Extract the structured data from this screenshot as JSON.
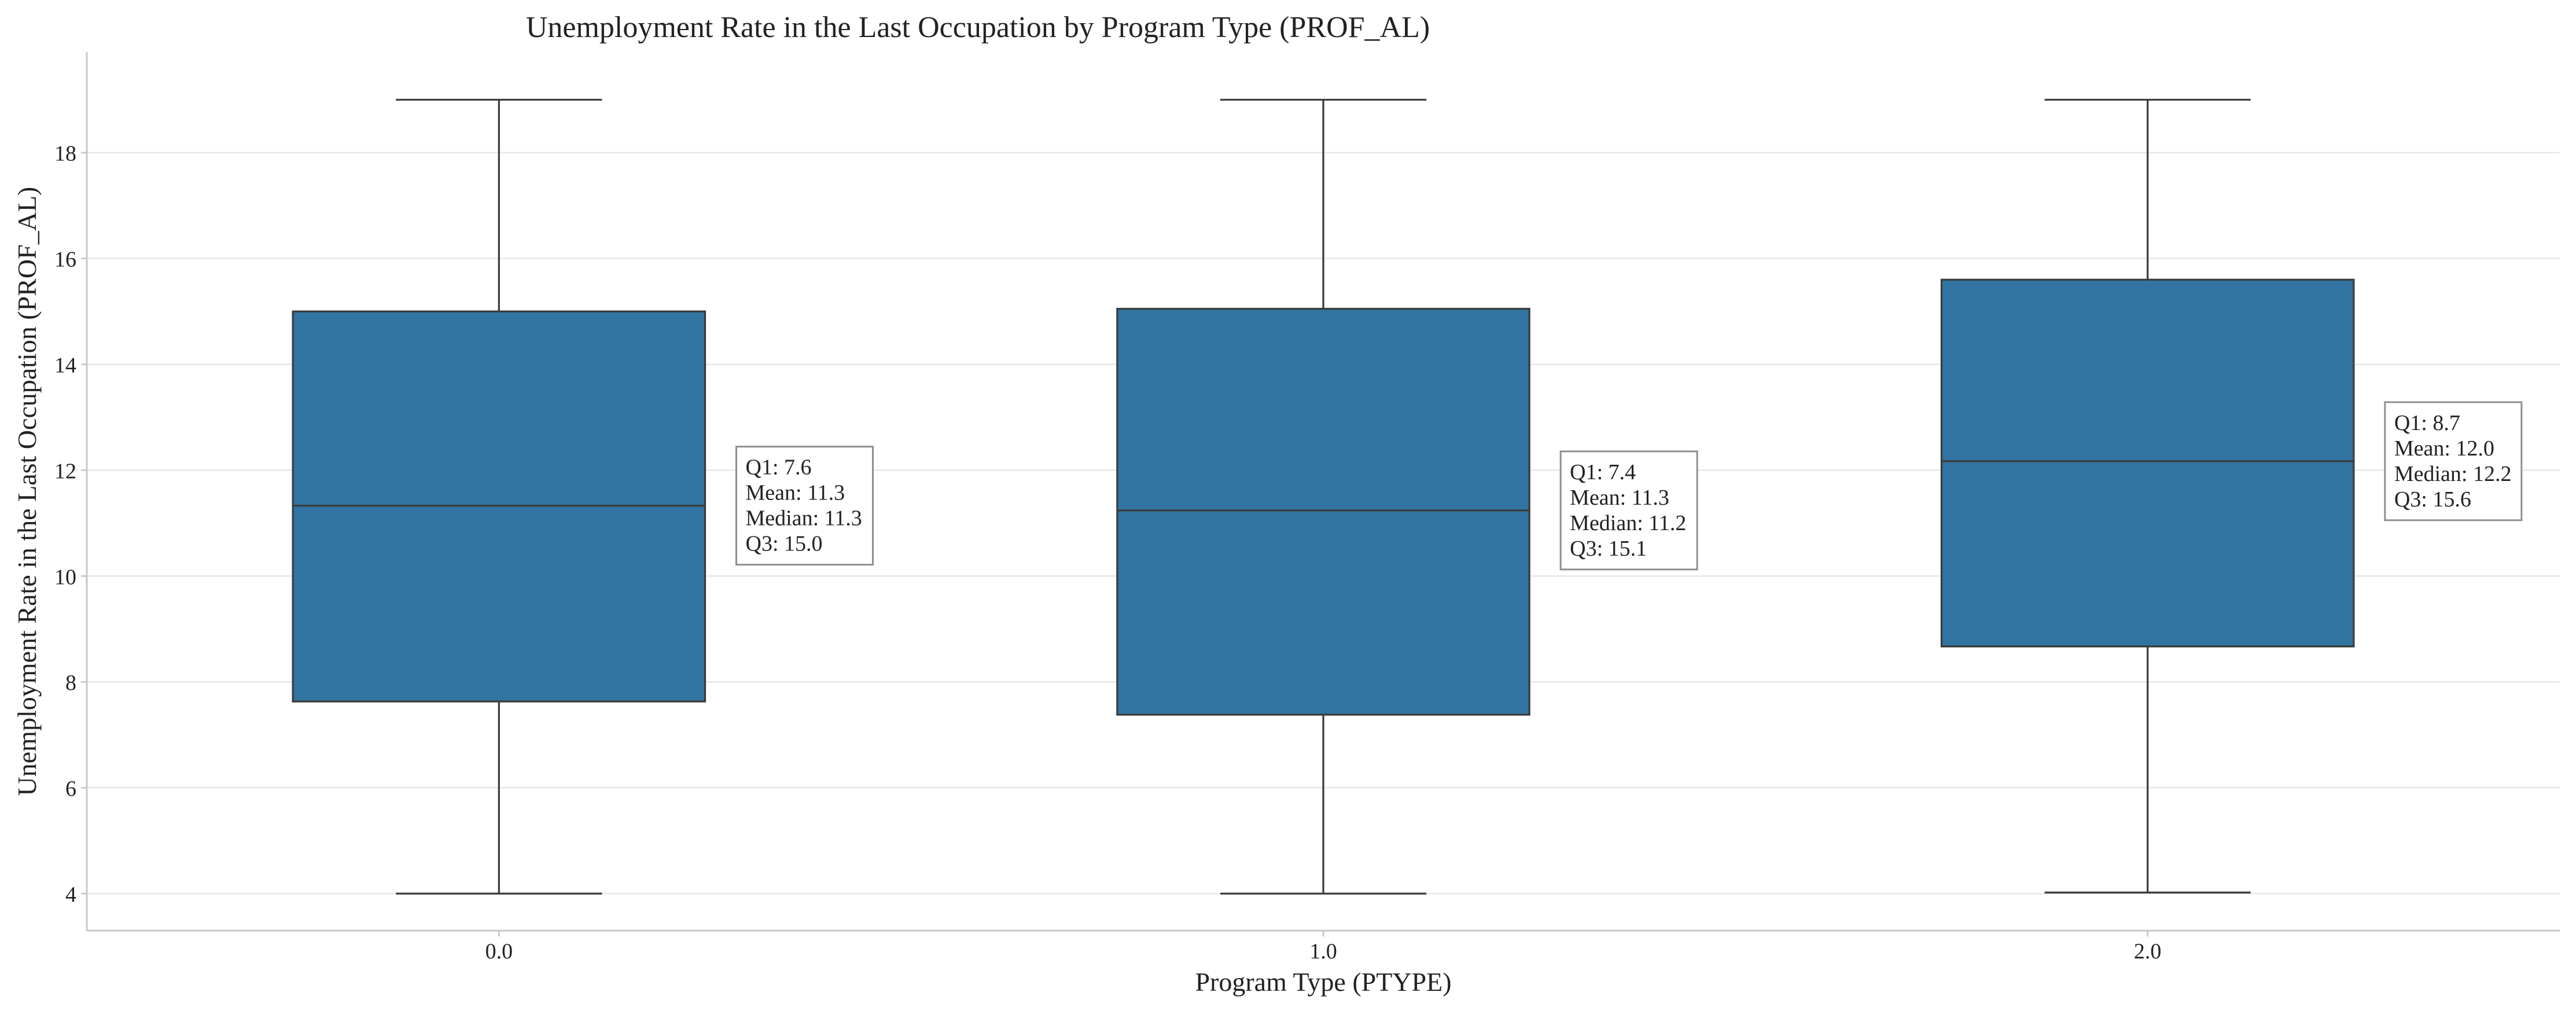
{
  "chart_data": {
    "type": "box",
    "title": "Unemployment Rate in the Last Occupation by Program Type (PROF_AL)",
    "xlabel": "Program Type (PTYPE)",
    "ylabel": "Unemployment Rate in the Last Occupation (PROF_AL)",
    "ylim": [
      3.3,
      19.9
    ],
    "yticks": [
      4,
      6,
      8,
      10,
      12,
      14,
      16,
      18
    ],
    "grid": "horizontal",
    "box_color": "#3274a1",
    "categories": [
      "0.0",
      "1.0",
      "2.0"
    ],
    "boxes": [
      {
        "category": "0.0",
        "whisker_low": 4.0,
        "q1": 7.63,
        "median": 11.33,
        "q3": 15.0,
        "whisker_high": 19.0,
        "stats_lines": [
          "Q1: 7.6",
          "Mean: 11.3",
          "Median: 11.3",
          "Q3: 15.0"
        ]
      },
      {
        "category": "1.0",
        "whisker_low": 4.0,
        "q1": 7.38,
        "median": 11.24,
        "q3": 15.05,
        "whisker_high": 19.0,
        "stats_lines": [
          "Q1: 7.4",
          "Mean: 11.3",
          "Median: 11.2",
          "Q3: 15.1"
        ]
      },
      {
        "category": "2.0",
        "whisker_low": 4.02,
        "q1": 8.67,
        "median": 12.17,
        "q3": 15.6,
        "whisker_high": 19.0,
        "stats_lines": [
          "Q1: 8.7",
          "Mean: 12.0",
          "Median: 12.2",
          "Q3: 15.6"
        ]
      }
    ]
  }
}
